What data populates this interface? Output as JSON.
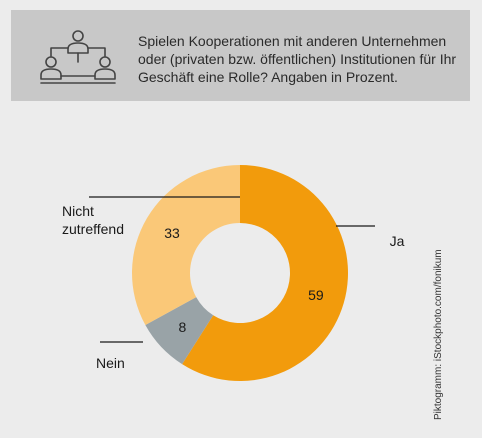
{
  "header": {
    "icon": "people-network-icon",
    "question": "Spielen Kooperationen mit anderen Unternehmen oder (privaten bzw. öffentlichen) Institutionen für Ihr Geschäft eine Rolle? Angaben in Prozent."
  },
  "chart_data": {
    "type": "pie",
    "donut": true,
    "categories": [
      "Ja",
      "Nein",
      "Nicht zutreffend"
    ],
    "values": [
      59,
      8,
      33
    ],
    "labels": [
      "Ja",
      "Nein",
      "Nicht\nzutreffend"
    ],
    "colors": [
      "#f29b0c",
      "#99a3a7",
      "#fac878"
    ],
    "title": "",
    "unit": "Prozent"
  },
  "credit": "Piktogramm: iStockphoto.com/fonikum"
}
